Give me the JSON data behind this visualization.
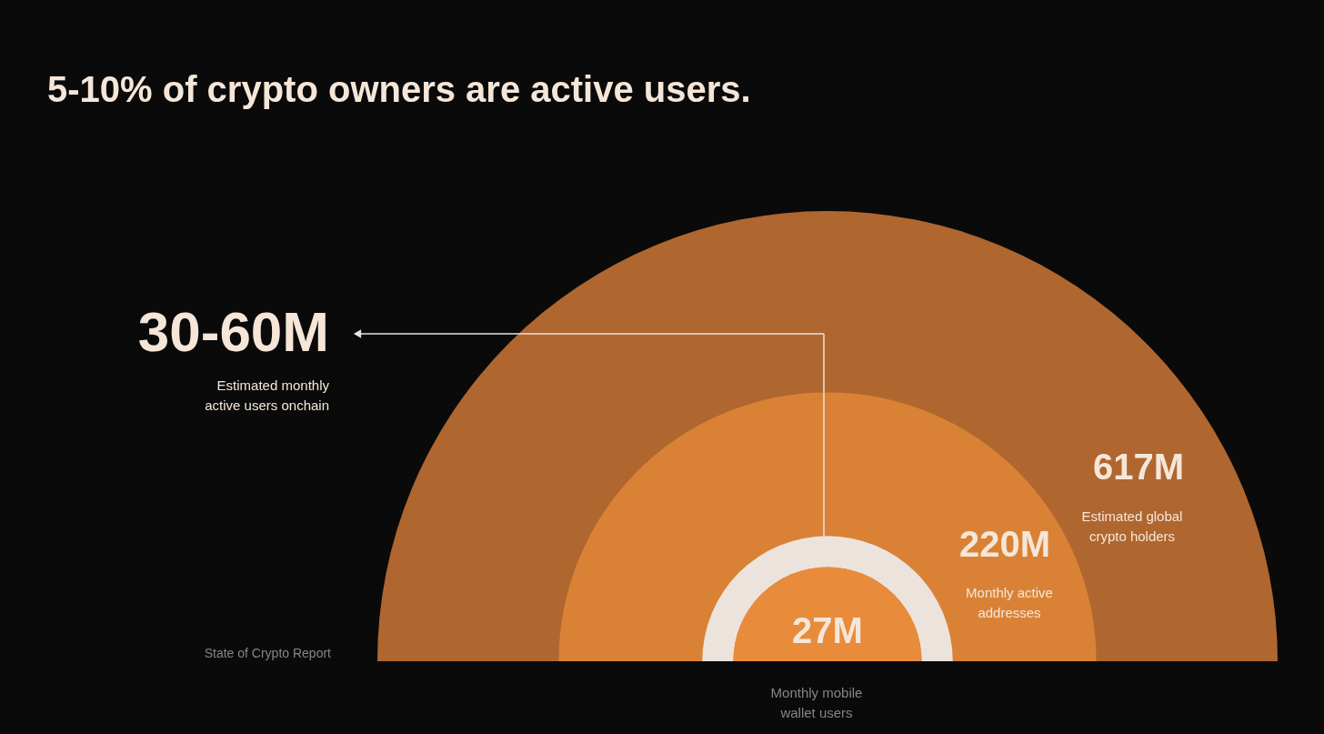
{
  "chart_data": {
    "type": "other",
    "title": "5-10% of crypto owners are active users.",
    "categories": [
      "Estimated global\ncrypto holders",
      "Monthly active\naddresses",
      "Estimated monthly\nactive users onchain",
      "Monthly mobile\nwallet users"
    ],
    "values": [
      617,
      220,
      null,
      27
    ],
    "value_labels": [
      "617M",
      "220M",
      "30-60M",
      "27M"
    ],
    "colors": [
      "#b0662f",
      "#d98236",
      "#ece3dc",
      "#e88c3c"
    ],
    "annotations": [
      "State of Crypto Report"
    ]
  }
}
